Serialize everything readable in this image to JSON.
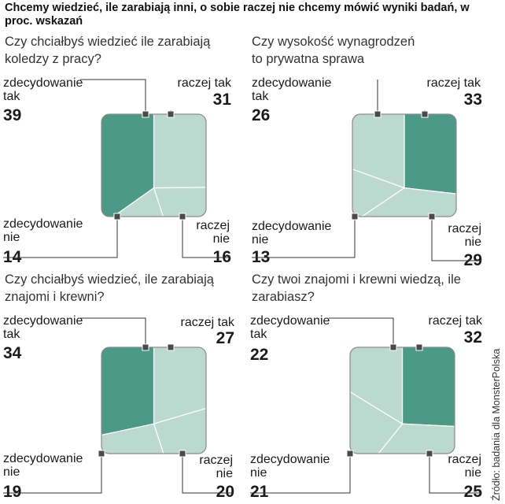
{
  "title": "Chcemy wiedzieć, ile zarabiają inni, o sobie raczej nie chcemy mówić wyniki badań, w proc. wskazań",
  "source": "Źródło: badania dla MonsterPolska",
  "colors": {
    "dark": "#4b9a88",
    "light": "#bcd9cf",
    "border": "#8a8a8a",
    "leader": "#333333"
  },
  "chart_data": [
    {
      "type": "pie",
      "question": "Czy chciałbyś wiedzieć ile zarabiają\nkoledzy z pracy?",
      "categories": [
        "zdecydowanie\ntak",
        "raczej tak",
        "raczej\nnie",
        "zdecydowanie\nnie"
      ],
      "values": [
        39,
        31,
        16,
        14
      ],
      "highlight": "zdecydowanie tak"
    },
    {
      "type": "pie",
      "question": "Czy wysokość wynagrodzeń\nto prywatna sprawa",
      "categories": [
        "zdecydowanie\ntak",
        "raczej tak",
        "raczej\nnie",
        "zdecydowanie\nnie"
      ],
      "values": [
        26,
        33,
        29,
        13
      ],
      "highlight": "raczej tak"
    },
    {
      "type": "pie",
      "question": "Czy chciałbyś wiedzieć, ile zarabiają\nznajomi i krewni?",
      "categories": [
        "zdecydowanie\ntak",
        "raczej tak",
        "raczej\nnie",
        "zdecydowanie\nnie"
      ],
      "values": [
        34,
        27,
        20,
        19
      ],
      "highlight": "zdecydowanie tak"
    },
    {
      "type": "pie",
      "question": "Czy twoi znajomi i krewni wiedzą, ile\nzarabiasz?",
      "categories": [
        "zdecydowanie\ntak",
        "raczej tak",
        "raczej\nnie",
        "zdecydowanie\nnie"
      ],
      "values": [
        22,
        32,
        25,
        21
      ],
      "highlight": "raczej tak"
    }
  ]
}
